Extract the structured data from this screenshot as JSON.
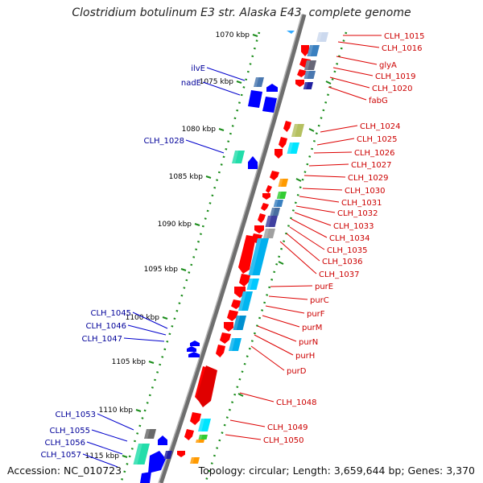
{
  "title": "Clostridium botulinum E3 str. Alaska E43, complete genome",
  "accession": "Accession: NC_010723",
  "topology": "Topology: circular; Length: 3,659,644 bp; Genes: 3,370",
  "colors": {
    "backbone": "#8f8f8f",
    "ticks": "#1a8c1a",
    "forward_gene": "#ff0000",
    "reverse_gene": "#0000ff",
    "right_label": "#cc0000",
    "left_label": "#000099",
    "kbp_label": "#000000"
  },
  "kbp_ticks": [
    "1070 kbp",
    "1075 kbp",
    "1080 kbp",
    "1085 kbp",
    "1090 kbp",
    "1095 kbp",
    "1100 kbp",
    "1105 kbp",
    "1110 kbp",
    "1115 kbp"
  ],
  "left_genes": [
    "ilvE",
    "nadE",
    "CLH_1028",
    "CLH_1045",
    "CLH_1046",
    "CLH_1047",
    "CLH_1053",
    "CLH_1055",
    "CLH_1056",
    "CLH_1057"
  ],
  "right_genes": [
    "CLH_1015",
    "CLH_1016",
    "glyA",
    "CLH_1019",
    "CLH_1020",
    "fabG",
    "CLH_1024",
    "CLH_1025",
    "CLH_1026",
    "CLH_1027",
    "CLH_1029",
    "CLH_1030",
    "CLH_1031",
    "CLH_1032",
    "CLH_1033",
    "CLH_1034",
    "CLH_1035",
    "CLH_1036",
    "CLH_1037",
    "purE",
    "purC",
    "purF",
    "purM",
    "purN",
    "purH",
    "purD",
    "CLH_1048",
    "CLH_1049",
    "CLH_1050"
  ]
}
